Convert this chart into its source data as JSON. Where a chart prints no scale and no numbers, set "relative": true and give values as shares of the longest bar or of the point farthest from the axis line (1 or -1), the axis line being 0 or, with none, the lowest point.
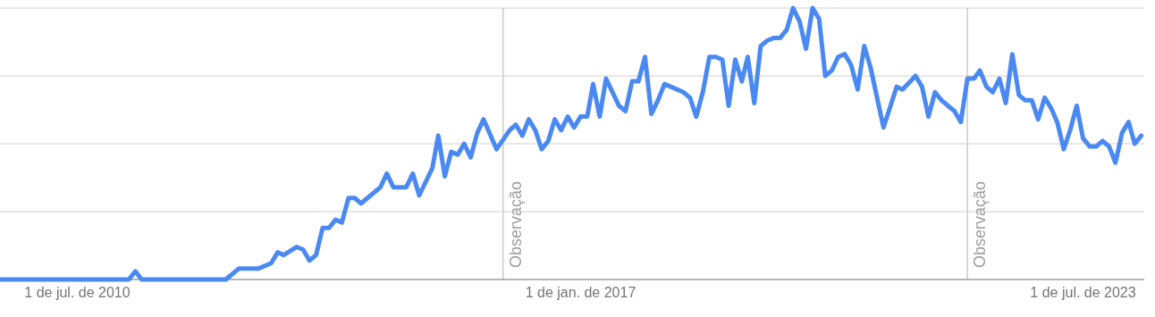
{
  "chart_data": {
    "type": "line",
    "relative": true,
    "grid": true,
    "line_style": "solid",
    "marker": "none",
    "xlim": [
      "2009-07-01",
      "2024-04-15"
    ],
    "xticks": [
      {
        "value": "2010-07-01",
        "label": "1 de jul. de 2010"
      },
      {
        "value": "2017-01-01",
        "label": "1 de jan. de 2017"
      },
      {
        "value": "2023-07-01",
        "label": "1 de jul. de 2023"
      }
    ],
    "ref_lines": [
      {
        "axis": "x",
        "value": "2016-01-01",
        "label": "Observação",
        "color": "#cccccc"
      },
      {
        "axis": "x",
        "value": "2022-01-01",
        "label": "Observação",
        "color": "#cccccc"
      }
    ],
    "x": [
      "2009-07",
      "2011-03",
      "2011-04",
      "2011-05",
      "2012-06",
      "2012-08",
      "2012-11",
      "2013-01",
      "2013-02",
      "2013-03",
      "2013-05",
      "2013-06",
      "2013-07",
      "2013-08",
      "2013-09",
      "2013-10",
      "2013-11",
      "2013-12",
      "2014-01",
      "2014-02",
      "2014-03",
      "2014-04",
      "2014-06",
      "2014-07",
      "2014-08",
      "2014-10",
      "2014-11",
      "2014-12",
      "2015-02",
      "2015-03",
      "2015-04",
      "2015-05",
      "2015-06",
      "2015-07",
      "2015-08",
      "2015-09",
      "2015-10",
      "2015-12",
      "2016-02",
      "2016-03",
      "2016-04",
      "2016-05",
      "2016-06",
      "2016-07",
      "2016-08",
      "2016-09",
      "2016-10",
      "2016-11",
      "2016-12",
      "2017-01",
      "2017-02",
      "2017-03",
      "2017-04",
      "2017-05",
      "2017-07",
      "2017-08",
      "2017-09",
      "2017-10",
      "2017-11",
      "2017-12",
      "2018-01",
      "2018-02",
      "2018-05",
      "2018-06",
      "2018-07",
      "2018-08",
      "2018-09",
      "2018-10",
      "2018-11",
      "2018-12",
      "2019-01",
      "2019-02",
      "2019-03",
      "2019-04",
      "2019-05",
      "2019-06",
      "2019-07",
      "2019-08",
      "2019-09",
      "2019-10",
      "2019-11",
      "2019-12",
      "2020-01",
      "2020-02",
      "2020-03",
      "2020-04",
      "2020-05",
      "2020-06",
      "2020-07",
      "2020-08",
      "2020-09",
      "2020-10",
      "2020-12",
      "2021-02",
      "2021-03",
      "2021-05",
      "2021-06",
      "2021-07",
      "2021-08",
      "2021-09",
      "2021-11",
      "2021-12",
      "2022-01",
      "2022-02",
      "2022-03",
      "2022-04",
      "2022-05",
      "2022-06",
      "2022-07",
      "2022-08",
      "2022-09",
      "2022-10",
      "2022-11",
      "2022-12",
      "2023-01",
      "2023-02",
      "2023-03",
      "2023-04",
      "2023-05",
      "2023-06",
      "2023-07",
      "2023-08",
      "2023-09",
      "2023-10",
      "2023-11",
      "2023-12",
      "2024-01",
      "2024-02",
      "2024-03",
      "2024-04"
    ],
    "series": [
      {
        "color": "#4a89f3",
        "values": [
          0,
          0,
          0.03,
          0,
          0,
          0.04,
          0.04,
          0.06,
          0.1,
          0.09,
          0.12,
          0.11,
          0.07,
          0.09,
          0.19,
          0.19,
          0.22,
          0.21,
          0.3,
          0.3,
          0.28,
          0.3,
          0.34,
          0.39,
          0.34,
          0.34,
          0.39,
          0.31,
          0.41,
          0.53,
          0.38,
          0.47,
          0.46,
          0.5,
          0.45,
          0.54,
          0.59,
          0.48,
          0.55,
          0.57,
          0.53,
          0.59,
          0.55,
          0.48,
          0.51,
          0.59,
          0.55,
          0.6,
          0.56,
          0.6,
          0.6,
          0.72,
          0.6,
          0.74,
          0.64,
          0.62,
          0.73,
          0.73,
          0.82,
          0.61,
          0.66,
          0.72,
          0.69,
          0.67,
          0.6,
          0.69,
          0.82,
          0.82,
          0.81,
          0.64,
          0.81,
          0.73,
          0.82,
          0.65,
          0.86,
          0.88,
          0.89,
          0.89,
          0.92,
          1,
          0.95,
          0.85,
          1,
          0.96,
          0.75,
          0.77,
          0.82,
          0.83,
          0.79,
          0.7,
          0.86,
          0.78,
          0.56,
          0.71,
          0.7,
          0.75,
          0.71,
          0.6,
          0.69,
          0.66,
          0.62,
          0.58,
          0.74,
          0.74,
          0.77,
          0.71,
          0.69,
          0.74,
          0.65,
          0.83,
          0.68,
          0.66,
          0.66,
          0.59,
          0.67,
          0.63,
          0.58,
          0.48,
          0.55,
          0.64,
          0.52,
          0.49,
          0.49,
          0.51,
          0.49,
          0.43,
          0.54,
          0.58,
          0.5,
          0.53
        ]
      }
    ]
  }
}
